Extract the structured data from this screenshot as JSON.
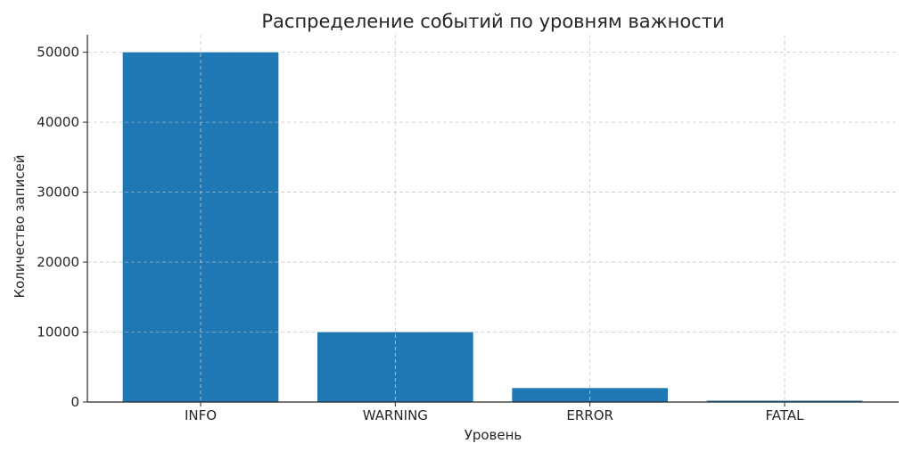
{
  "chart_data": {
    "type": "bar",
    "title": "Распределение событий по уровням важности",
    "xlabel": "Уровень",
    "ylabel": "Количество записей",
    "categories": [
      "INFO",
      "WARNING",
      "ERROR",
      "FATAL"
    ],
    "values": [
      50000,
      10000,
      2000,
      200
    ],
    "ylim": [
      0,
      52500
    ],
    "yticks": [
      0,
      10000,
      20000,
      30000,
      40000,
      50000
    ],
    "grid": true,
    "bar_color": "#1f77b4"
  }
}
